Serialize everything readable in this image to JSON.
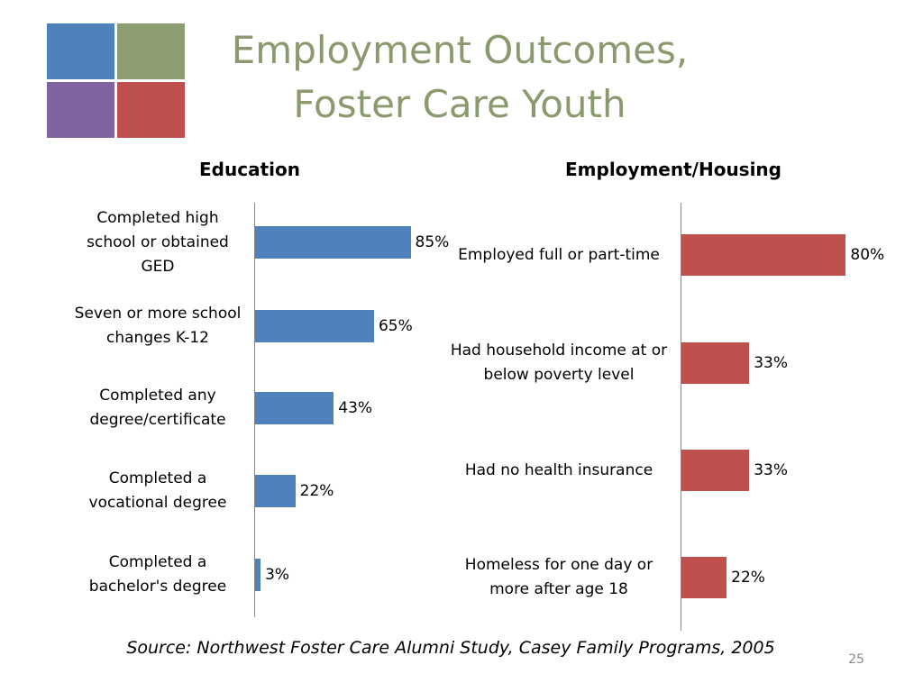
{
  "title": [
    "Employment Outcomes,",
    "Foster Care Youth"
  ],
  "source": "Source: Northwest Foster Care Alumni Study, Casey Family Programs, 2005",
  "page_number": "25",
  "chart_data": [
    {
      "type": "bar",
      "orientation": "horizontal",
      "title": "Education",
      "color": "#4f81bd",
      "categories": [
        "Completed high school or obtained GED",
        "Seven or more school changes K-12",
        "Completed any degree/certificate",
        "Completed a vocational degree",
        "Completed a bachelor's degree"
      ],
      "values": [
        85,
        65,
        43,
        22,
        3
      ],
      "value_labels": [
        "85%",
        "65%",
        "43%",
        "22%",
        "3%"
      ],
      "xlim": [
        0,
        100
      ]
    },
    {
      "type": "bar",
      "orientation": "horizontal",
      "title": "Employment/Housing",
      "color": "#c0504d",
      "categories": [
        "Employed full or part-time",
        "Had household income at or below poverty level",
        "Had no health insurance",
        "Homeless for one day or more after age 18"
      ],
      "values": [
        80,
        33,
        33,
        22
      ],
      "value_labels": [
        "80%",
        "33%",
        "33%",
        "22%"
      ],
      "xlim": [
        0,
        100
      ]
    }
  ]
}
